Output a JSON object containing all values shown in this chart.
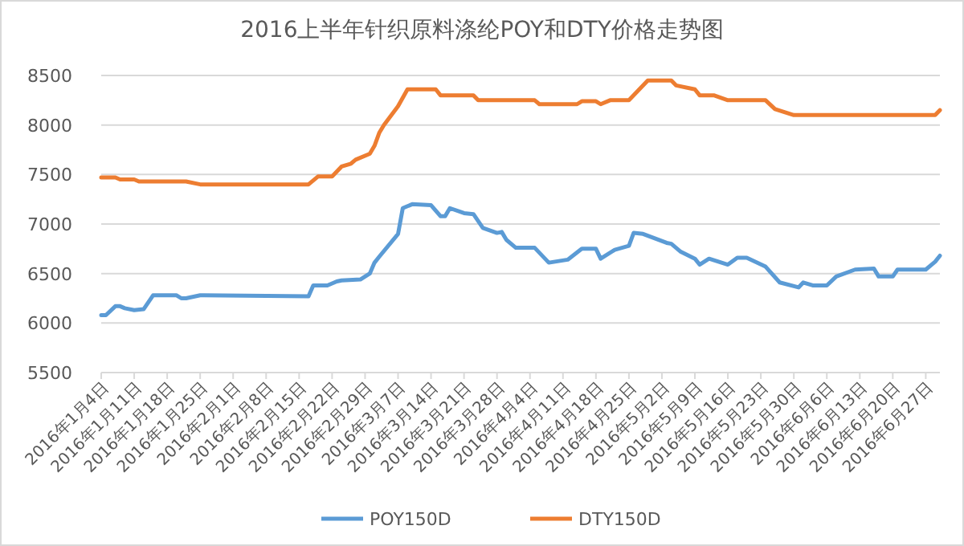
{
  "chart_data": {
    "type": "line",
    "title": "2016上半年针织原料涤纶POY和DTY价格走势图",
    "xlim": [
      "2016-01-04",
      "2016-06-30"
    ],
    "xticks": [
      {
        "value": "2016-01-04",
        "label": "2016年1月4日"
      },
      {
        "value": "2016-01-11",
        "label": "2016年1月11日"
      },
      {
        "value": "2016-01-18",
        "label": "2016年1月18日"
      },
      {
        "value": "2016-01-25",
        "label": "2016年1月25日"
      },
      {
        "value": "2016-02-01",
        "label": "2016年2月1日"
      },
      {
        "value": "2016-02-08",
        "label": "2016年2月8日"
      },
      {
        "value": "2016-02-15",
        "label": "2016年2月15日"
      },
      {
        "value": "2016-02-22",
        "label": "2016年2月22日"
      },
      {
        "value": "2016-02-29",
        "label": "2016年2月29日"
      },
      {
        "value": "2016-03-07",
        "label": "2016年3月7日"
      },
      {
        "value": "2016-03-14",
        "label": "2016年3月14日"
      },
      {
        "value": "2016-03-21",
        "label": "2016年3月21日"
      },
      {
        "value": "2016-03-28",
        "label": "2016年3月28日"
      },
      {
        "value": "2016-04-04",
        "label": "2016年4月4日"
      },
      {
        "value": "2016-04-11",
        "label": "2016年4月11日"
      },
      {
        "value": "2016-04-18",
        "label": "2016年4月18日"
      },
      {
        "value": "2016-04-25",
        "label": "2016年4月25日"
      },
      {
        "value": "2016-05-02",
        "label": "2016年5月2日"
      },
      {
        "value": "2016-05-09",
        "label": "2016年5月9日"
      },
      {
        "value": "2016-05-16",
        "label": "2016年5月16日"
      },
      {
        "value": "2016-05-23",
        "label": "2016年5月23日"
      },
      {
        "value": "2016-05-30",
        "label": "2016年5月30日"
      },
      {
        "value": "2016-06-06",
        "label": "2016年6月6日"
      },
      {
        "value": "2016-06-13",
        "label": "2016年6月13日"
      },
      {
        "value": "2016-06-20",
        "label": "2016年6月20日"
      },
      {
        "value": "2016-06-27",
        "label": "2016年6月27日"
      }
    ],
    "ylim": [
      5500,
      8500
    ],
    "yticks": [
      5500,
      6000,
      6500,
      7000,
      7500,
      8000,
      8500
    ],
    "grid": "y",
    "legend": "bottom",
    "marker": "none",
    "line_style": "solid",
    "series": [
      {
        "name": "POY150D",
        "color": "#5b9bd5",
        "x": [
          "2016-01-04",
          "2016-01-05",
          "2016-01-07",
          "2016-01-08",
          "2016-01-09",
          "2016-01-11",
          "2016-01-13",
          "2016-01-15",
          "2016-01-20",
          "2016-01-21",
          "2016-01-22",
          "2016-01-25",
          "2016-02-17",
          "2016-02-18",
          "2016-02-21",
          "2016-02-23",
          "2016-02-24",
          "2016-02-28",
          "2016-03-01",
          "2016-03-02",
          "2016-03-03",
          "2016-03-07",
          "2016-03-08",
          "2016-03-10",
          "2016-03-14",
          "2016-03-16",
          "2016-03-17",
          "2016-03-18",
          "2016-03-21",
          "2016-03-23",
          "2016-03-25",
          "2016-03-28",
          "2016-03-29",
          "2016-03-30",
          "2016-04-01",
          "2016-04-05",
          "2016-04-08",
          "2016-04-12",
          "2016-04-15",
          "2016-04-18",
          "2016-04-19",
          "2016-04-22",
          "2016-04-25",
          "2016-04-26",
          "2016-04-28",
          "2016-05-03",
          "2016-05-04",
          "2016-05-06",
          "2016-05-09",
          "2016-05-10",
          "2016-05-12",
          "2016-05-16",
          "2016-05-18",
          "2016-05-20",
          "2016-05-24",
          "2016-05-27",
          "2016-05-31",
          "2016-06-01",
          "2016-06-03",
          "2016-06-06",
          "2016-06-08",
          "2016-06-12",
          "2016-06-16",
          "2016-06-17",
          "2016-06-20",
          "2016-06-21",
          "2016-06-27",
          "2016-06-29",
          "2016-06-30"
        ],
        "values": [
          6080,
          6080,
          6170,
          6170,
          6150,
          6130,
          6140,
          6280,
          6280,
          6250,
          6250,
          6280,
          6270,
          6380,
          6380,
          6420,
          6430,
          6440,
          6500,
          6610,
          6670,
          6900,
          7160,
          7200,
          7190,
          7080,
          7080,
          7160,
          7110,
          7100,
          6960,
          6910,
          6920,
          6840,
          6760,
          6760,
          6610,
          6640,
          6750,
          6750,
          6650,
          6740,
          6780,
          6910,
          6900,
          6810,
          6800,
          6720,
          6650,
          6590,
          6650,
          6590,
          6660,
          6660,
          6570,
          6410,
          6360,
          6410,
          6380,
          6380,
          6470,
          6540,
          6550,
          6470,
          6470,
          6540,
          6540,
          6620,
          6680
        ]
      },
      {
        "name": "DTY150D",
        "color": "#ed7d31",
        "x": [
          "2016-01-04",
          "2016-01-07",
          "2016-01-08",
          "2016-01-11",
          "2016-01-12",
          "2016-01-22",
          "2016-01-25",
          "2016-02-17",
          "2016-02-19",
          "2016-02-22",
          "2016-02-24",
          "2016-02-26",
          "2016-02-27",
          "2016-03-01",
          "2016-03-02",
          "2016-03-03",
          "2016-03-04",
          "2016-03-07",
          "2016-03-09",
          "2016-03-15",
          "2016-03-16",
          "2016-03-23",
          "2016-03-24",
          "2016-04-05",
          "2016-04-06",
          "2016-04-14",
          "2016-04-15",
          "2016-04-18",
          "2016-04-19",
          "2016-04-21",
          "2016-04-25",
          "2016-04-29",
          "2016-05-04",
          "2016-05-05",
          "2016-05-09",
          "2016-05-10",
          "2016-05-13",
          "2016-05-16",
          "2016-05-24",
          "2016-05-26",
          "2016-05-30",
          "2016-06-29",
          "2016-06-30"
        ],
        "values": [
          7470,
          7470,
          7450,
          7450,
          7430,
          7430,
          7400,
          7400,
          7480,
          7480,
          7580,
          7610,
          7650,
          7710,
          7790,
          7920,
          8000,
          8190,
          8360,
          8360,
          8300,
          8300,
          8250,
          8250,
          8210,
          8210,
          8240,
          8240,
          8210,
          8250,
          8250,
          8450,
          8450,
          8400,
          8360,
          8300,
          8300,
          8250,
          8250,
          8160,
          8100,
          8100,
          8150
        ]
      }
    ]
  }
}
